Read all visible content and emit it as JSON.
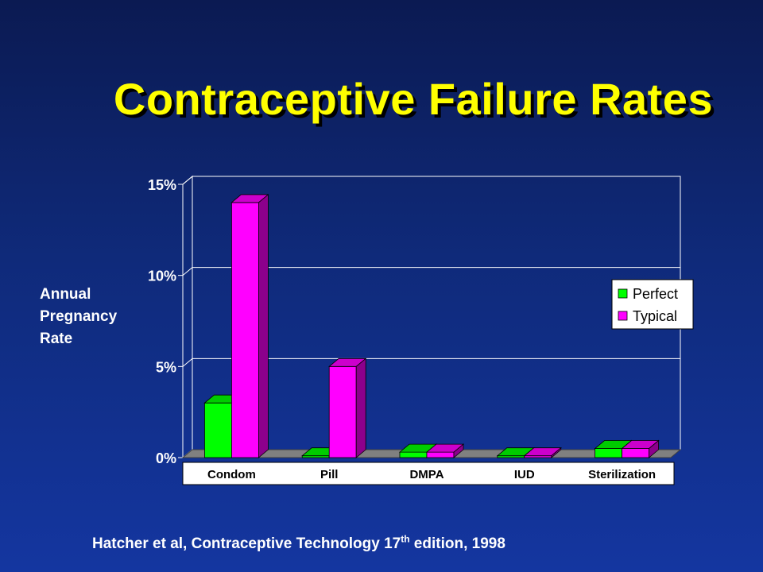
{
  "slide": {
    "title": "Contraceptive Failure Rates",
    "ylabel_lines": [
      "Annual",
      "Pregnancy",
      "Rate"
    ],
    "citation_pre": "Hatcher et al, Contraceptive Technology 17",
    "citation_sup": "th",
    "citation_post": " edition, 1998"
  },
  "colors": {
    "perfect": "#00ff00",
    "typical": "#ff00ff",
    "title": "#ffff00"
  },
  "chart_data": {
    "type": "bar",
    "style": "3d-clustered",
    "categories": [
      "Condom",
      "Pill",
      "DMPA",
      "IUD",
      "Sterilization"
    ],
    "series": [
      {
        "name": "Perfect",
        "values": [
          3.0,
          0.1,
          0.3,
          0.1,
          0.5
        ]
      },
      {
        "name": "Typical",
        "values": [
          14.0,
          5.0,
          0.3,
          0.1,
          0.5
        ]
      }
    ],
    "ylim": [
      0,
      15
    ],
    "yticks": [
      0,
      5,
      10,
      15
    ],
    "ytick_labels": [
      "0%",
      "5%",
      "10%",
      "15%"
    ],
    "ylabel": "Annual Pregnancy Rate",
    "xlabel": "",
    "grid": true,
    "legend_position": "right"
  }
}
